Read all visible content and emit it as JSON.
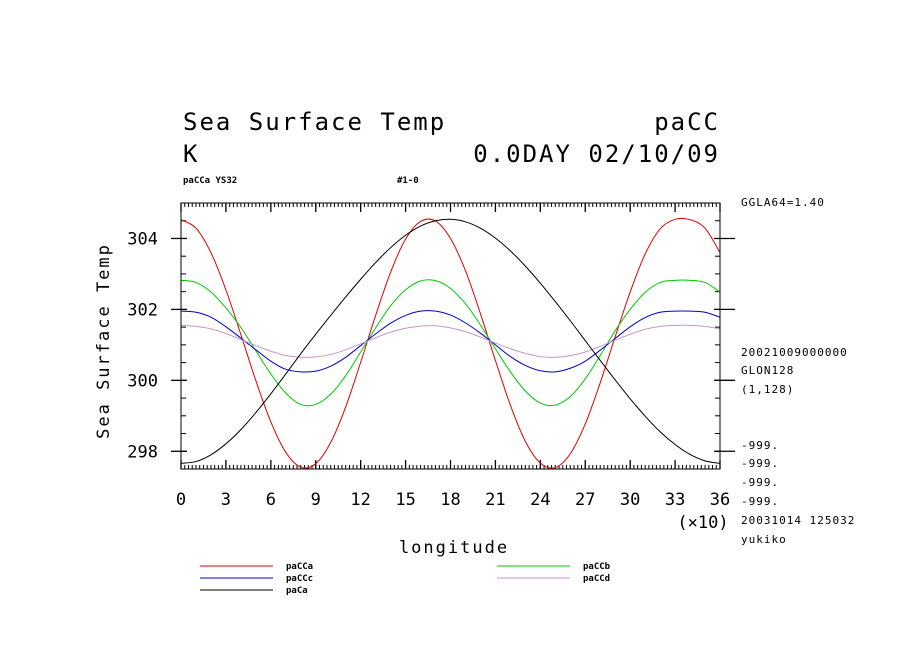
{
  "header": {
    "title": "Sea Surface Temp",
    "model": "paCC",
    "unit": "K",
    "time": "0.0DAY 02/10/09",
    "run": "paCCa YS32",
    "page_id": "#1-0"
  },
  "side_info": {
    "lat": "GGLA64=1.40",
    "date": "20021009000000",
    "grid": "GLON128",
    "range": "(1,128)",
    "missing": [
      "-999.",
      "-999.",
      "-999.",
      "-999."
    ],
    "stamp": "20031014 125032",
    "user": "yukiko"
  },
  "chart_data": {
    "type": "line",
    "title": "Sea Surface Temp",
    "xlabel": "longitude",
    "x_multiplier": "(×10)",
    "ylabel": "Sea Surface Temp",
    "xlim": [
      0,
      36
    ],
    "ylim": [
      297.5,
      305
    ],
    "x_ticks": [
      0,
      3,
      6,
      9,
      12,
      15,
      18,
      21,
      24,
      27,
      30,
      33,
      36
    ],
    "x_tick_labels": [
      "0",
      "3",
      "6",
      "9",
      "12",
      "15",
      "18",
      "21",
      "24",
      "27",
      "30",
      "33",
      "36"
    ],
    "y_ticks": [
      298,
      300,
      302,
      304
    ],
    "y_tick_labels": [
      "298",
      "300",
      "302",
      "304"
    ],
    "x": [
      0,
      1,
      2,
      3,
      4,
      5,
      6,
      7,
      8,
      9,
      10,
      11,
      12,
      13,
      14,
      15,
      16,
      17,
      18,
      19,
      20,
      21,
      22,
      23,
      24,
      25,
      26,
      27,
      28,
      29,
      30,
      31,
      32,
      33,
      34,
      35,
      36
    ],
    "series": [
      {
        "name": "paCCa",
        "color": "#e00000",
        "values": [
          304.53,
          304.29,
          303.6,
          302.55,
          301.29,
          299.99,
          298.83,
          297.97,
          297.55,
          297.65,
          298.25,
          299.25,
          300.51,
          301.83,
          303.05,
          303.98,
          304.48,
          304.49,
          304.0,
          303.09,
          301.88,
          300.56,
          299.3,
          298.28,
          297.67,
          297.54,
          297.93,
          298.77,
          299.93,
          301.23,
          302.49,
          303.56,
          304.27,
          304.54,
          304.53,
          304.29,
          303.6
        ]
      },
      {
        "name": "paCCb",
        "color": "#00c800",
        "values": [
          302.82,
          302.76,
          302.49,
          302.04,
          301.49,
          300.83,
          300.18,
          299.64,
          299.32,
          299.32,
          299.61,
          300.13,
          300.8,
          301.48,
          302.1,
          302.55,
          302.8,
          302.81,
          302.59,
          302.16,
          301.56,
          300.89,
          300.24,
          299.7,
          299.36,
          299.3,
          299.54,
          300.04,
          300.7,
          301.4,
          302.0,
          302.48,
          302.76,
          302.82,
          302.82,
          302.76,
          302.49
        ]
      },
      {
        "name": "paCCc",
        "color": "#0000c8",
        "values": [
          301.95,
          301.92,
          301.78,
          301.51,
          301.19,
          300.86,
          300.54,
          300.31,
          300.24,
          300.26,
          300.4,
          300.65,
          300.98,
          301.31,
          301.61,
          301.83,
          301.95,
          301.95,
          301.84,
          301.62,
          301.33,
          301.0,
          300.67,
          300.42,
          300.27,
          300.24,
          300.34,
          300.54,
          300.85,
          301.18,
          301.51,
          301.77,
          301.92,
          301.95,
          301.95,
          301.92,
          301.78
        ]
      },
      {
        "name": "paCCd",
        "color": "#c896c8",
        "values": [
          301.55,
          301.52,
          301.45,
          301.32,
          301.15,
          300.98,
          300.82,
          300.7,
          300.65,
          300.66,
          300.73,
          300.86,
          301.03,
          301.2,
          301.36,
          301.47,
          301.53,
          301.54,
          301.48,
          301.37,
          301.22,
          301.05,
          300.89,
          300.76,
          300.67,
          300.65,
          300.7,
          300.8,
          300.96,
          301.13,
          301.3,
          301.44,
          301.52,
          301.55,
          301.55,
          301.52,
          301.45
        ]
      },
      {
        "name": "paCa",
        "color": "#000000",
        "values": [
          297.66,
          297.71,
          297.9,
          298.21,
          298.61,
          299.09,
          299.62,
          300.18,
          300.75,
          301.3,
          301.83,
          302.35,
          302.85,
          303.32,
          303.74,
          304.09,
          304.35,
          304.5,
          304.54,
          304.47,
          304.29,
          304.01,
          303.65,
          303.22,
          302.74,
          302.22,
          301.68,
          301.12,
          300.56,
          300.01,
          299.48,
          298.99,
          298.55,
          298.19,
          297.91,
          297.73,
          297.66
        ]
      }
    ],
    "legend": [
      {
        "label": "paCCa",
        "color": "#e00000"
      },
      {
        "label": "paCCb",
        "color": "#00c800"
      },
      {
        "label": "paCCc",
        "color": "#0000c8"
      },
      {
        "label": "paCCd",
        "color": "#c896c8"
      },
      {
        "label": "paCa",
        "color": "#000000"
      }
    ],
    "grid": false,
    "legend_position": "bottom-left"
  }
}
